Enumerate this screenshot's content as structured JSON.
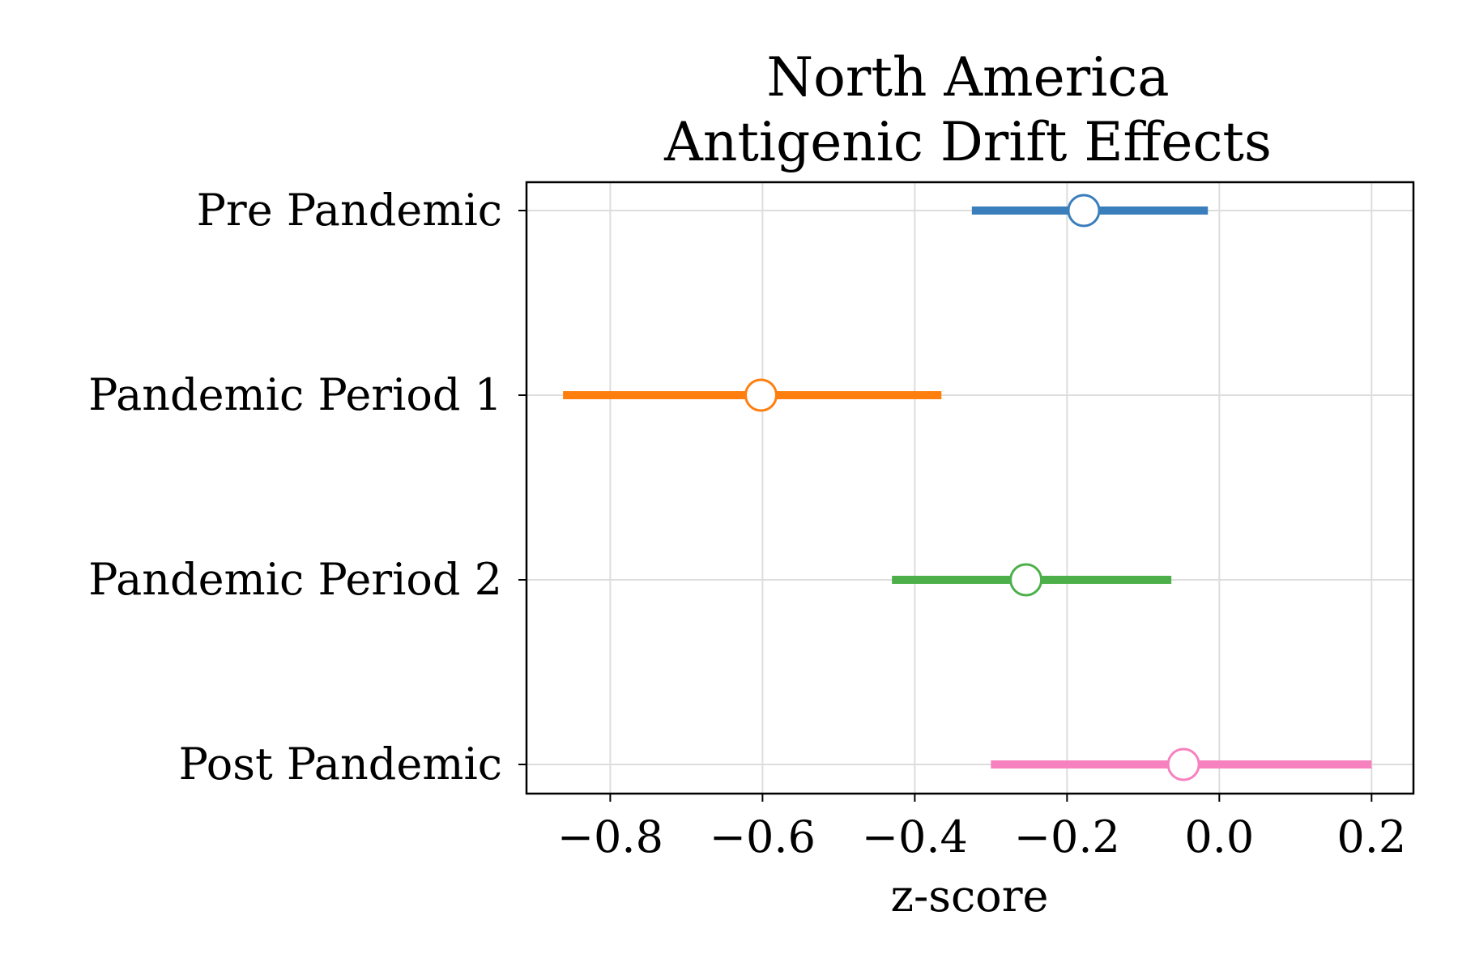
{
  "chart_data": {
    "type": "forest",
    "title": [
      "North America",
      "Antigenic Drift Effects"
    ],
    "xlabel": "z-score",
    "ylabel": "",
    "xlim": [
      -0.91,
      0.255
    ],
    "grid": true,
    "legend": "none",
    "xticks": [
      -0.8,
      -0.6,
      -0.4,
      -0.2,
      0.0,
      0.2
    ],
    "xtick_labels": [
      "−0.8",
      "−0.6",
      "−0.4",
      "−0.2",
      "0.0",
      "0.2"
    ],
    "categories": [
      "Pre Pandemic",
      "Pandemic Period 1",
      "Pandemic Period 2",
      "Post Pandemic"
    ],
    "points": [
      {
        "category": "Pre Pandemic",
        "estimate": -0.178,
        "lower": -0.325,
        "upper": -0.015,
        "color": "#3a7ebc"
      },
      {
        "category": "Pandemic Period 1",
        "estimate": -0.602,
        "lower": -0.862,
        "upper": -0.365,
        "color": "#ff7f0e"
      },
      {
        "category": "Pandemic Period 2",
        "estimate": -0.254,
        "lower": -0.43,
        "upper": -0.063,
        "color": "#4daf4a"
      },
      {
        "category": "Post Pandemic",
        "estimate": -0.047,
        "lower": -0.3,
        "upper": 0.2,
        "color": "#f781bf"
      }
    ]
  }
}
